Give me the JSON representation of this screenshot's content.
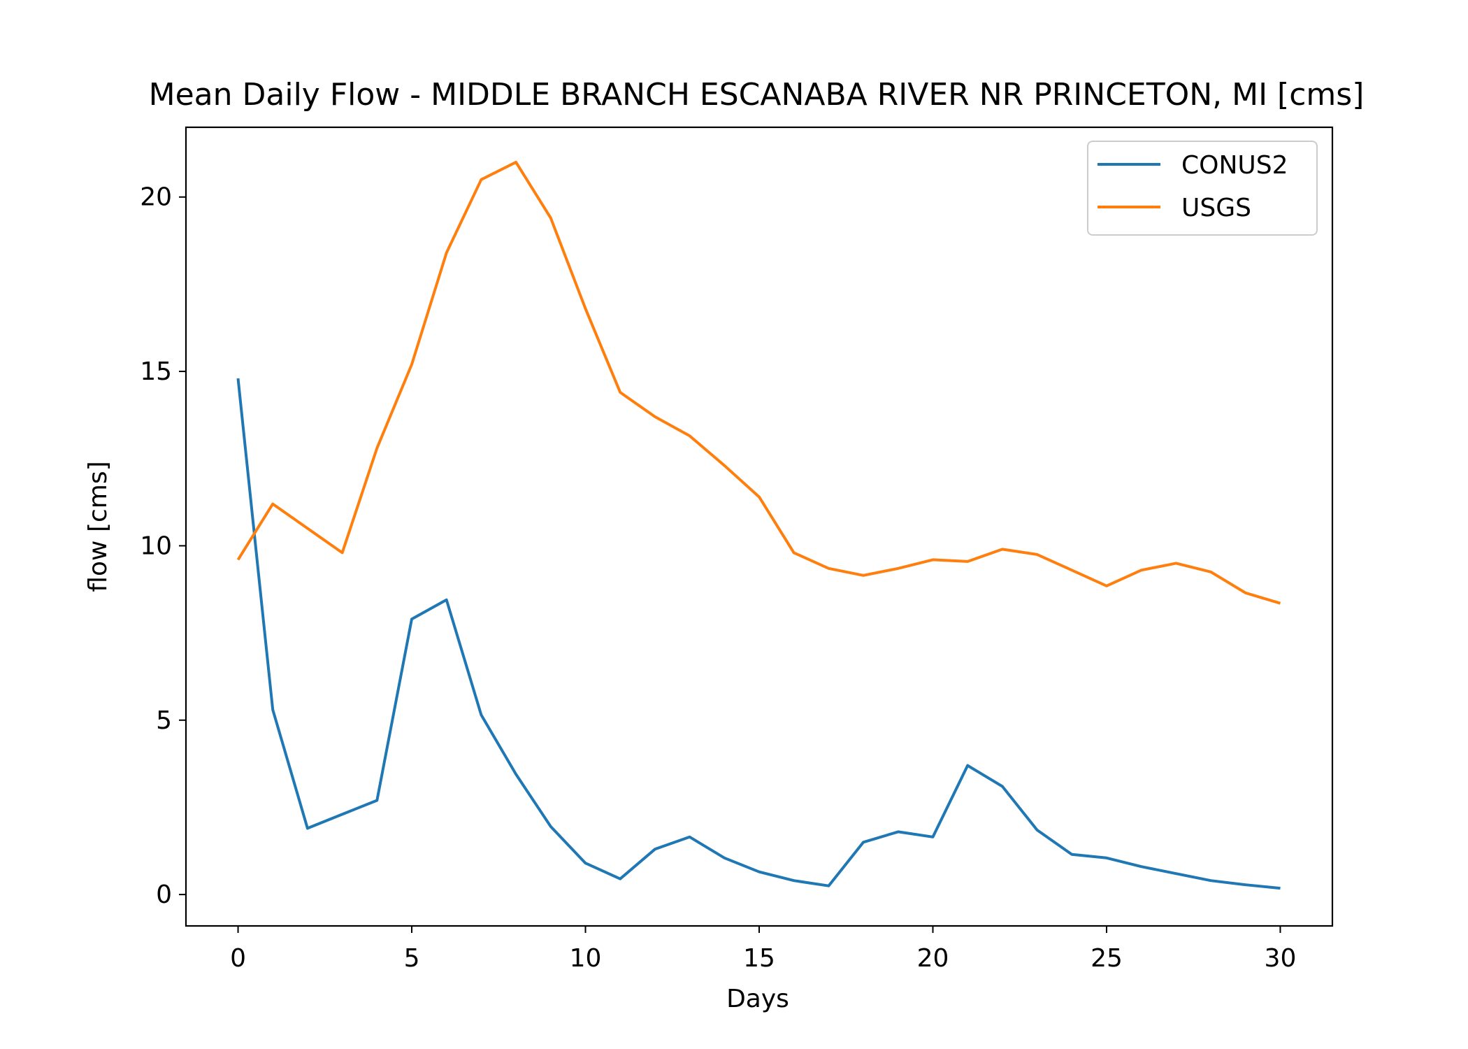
{
  "chart_data": {
    "type": "line",
    "title": "Mean Daily Flow - MIDDLE BRANCH ESCANABA RIVER NR PRINCETON, MI [cms]",
    "xlabel": "Days",
    "ylabel": "flow [cms]",
    "xlim": [
      -1.5,
      31.5
    ],
    "ylim": [
      -0.9,
      22
    ],
    "xticks": [
      0,
      5,
      10,
      15,
      20,
      25,
      30
    ],
    "yticks": [
      0,
      5,
      10,
      15,
      20
    ],
    "grid": false,
    "legend_position": "top-right",
    "x": [
      0,
      1,
      2,
      3,
      4,
      5,
      6,
      7,
      8,
      9,
      10,
      11,
      12,
      13,
      14,
      15,
      16,
      17,
      18,
      19,
      20,
      21,
      22,
      23,
      24,
      25,
      26,
      27,
      28,
      29,
      30
    ],
    "series": [
      {
        "name": "CONUS2",
        "color": "#1f77b4",
        "values": [
          14.8,
          5.3,
          1.9,
          2.3,
          2.7,
          7.9,
          8.45,
          5.15,
          3.45,
          1.95,
          0.9,
          0.45,
          1.3,
          1.65,
          1.05,
          0.65,
          0.4,
          0.25,
          1.5,
          1.8,
          1.65,
          3.7,
          3.1,
          1.85,
          1.15,
          1.05,
          0.8,
          0.6,
          0.4,
          0.28,
          0.18
        ]
      },
      {
        "name": "USGS",
        "color": "#ff7f0e",
        "values": [
          9.6,
          11.2,
          10.5,
          9.8,
          12.8,
          15.2,
          18.4,
          20.5,
          21.0,
          19.4,
          16.8,
          14.4,
          13.7,
          13.15,
          12.3,
          11.4,
          9.8,
          9.35,
          9.15,
          9.35,
          9.6,
          9.55,
          9.9,
          9.75,
          9.3,
          8.85,
          9.3,
          9.5,
          9.25,
          8.65,
          8.35
        ]
      }
    ]
  }
}
